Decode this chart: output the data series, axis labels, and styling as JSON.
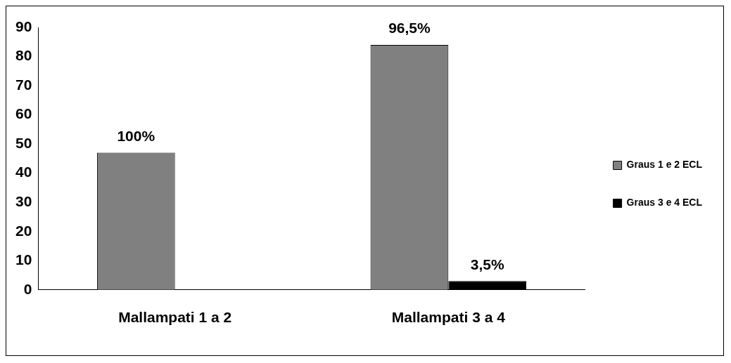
{
  "chart_data": {
    "type": "bar",
    "categories": [
      "Mallampati 1 a 2",
      "Mallampati 3 a 4"
    ],
    "series": [
      {
        "name": "Graus 1 e 2 ECL",
        "color": "#808080",
        "values": [
          47,
          84
        ]
      },
      {
        "name": "Graus 3 e 4 ECL",
        "color": "#000000",
        "values": [
          null,
          3
        ]
      }
    ],
    "annotations": [
      {
        "text": "100%",
        "x": "Mallampati 1 a 2",
        "y": 47
      },
      {
        "text": "96,5%",
        "x": "Mallampati 3 a 4",
        "y": 84
      },
      {
        "text": "3,5%",
        "x": "Mallampati 3 a 4",
        "y": 3
      }
    ],
    "ylim": [
      0,
      90
    ],
    "yticks": [
      0,
      10,
      20,
      30,
      40,
      50,
      60,
      70,
      80,
      90
    ],
    "grid": false,
    "legend": "right"
  }
}
